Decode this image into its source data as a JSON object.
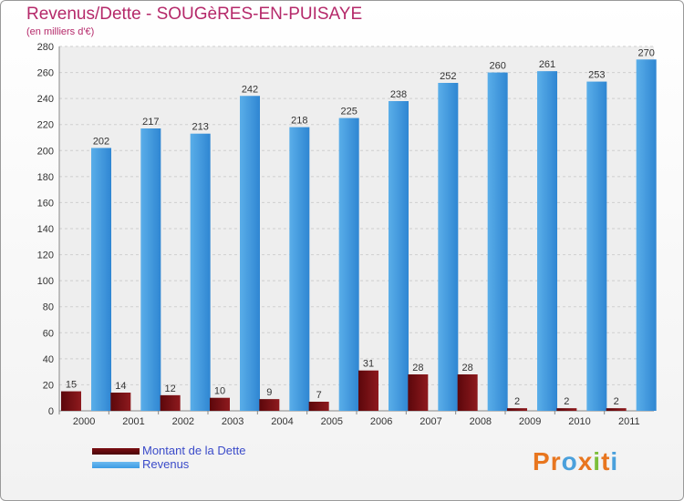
{
  "chart_data": {
    "type": "bar",
    "title": "Revenus/Dette - SOUGèRES-EN-PUISAYE",
    "subtitle": "(en milliers d'€)",
    "categories": [
      "2000",
      "2001",
      "2002",
      "2003",
      "2004",
      "2005",
      "2006",
      "2007",
      "2008",
      "2009",
      "2010",
      "2011"
    ],
    "series": [
      {
        "name": "Montant de la Dette",
        "color": "#7a0e12",
        "values": [
          15,
          14,
          12,
          10,
          9,
          7,
          31,
          28,
          28,
          2,
          2,
          2
        ]
      },
      {
        "name": "Revenus",
        "color": "#3d9be3",
        "values": [
          202,
          217,
          213,
          242,
          218,
          225,
          238,
          252,
          260,
          261,
          253,
          270
        ]
      }
    ],
    "ylim": [
      0,
      280
    ],
    "yticks": [
      0,
      20,
      40,
      60,
      80,
      100,
      120,
      140,
      160,
      180,
      200,
      220,
      240,
      260,
      280
    ],
    "grid": true,
    "legend_position": "bottom-left"
  },
  "logo": {
    "letters": [
      "P",
      "r",
      "o",
      "x",
      "i",
      "t",
      "i"
    ],
    "colors": [
      "#e8761f",
      "#e8761f",
      "#4aa0dc",
      "#e8761f",
      "#7cbf3a",
      "#e8761f",
      "#4aa0dc"
    ]
  }
}
